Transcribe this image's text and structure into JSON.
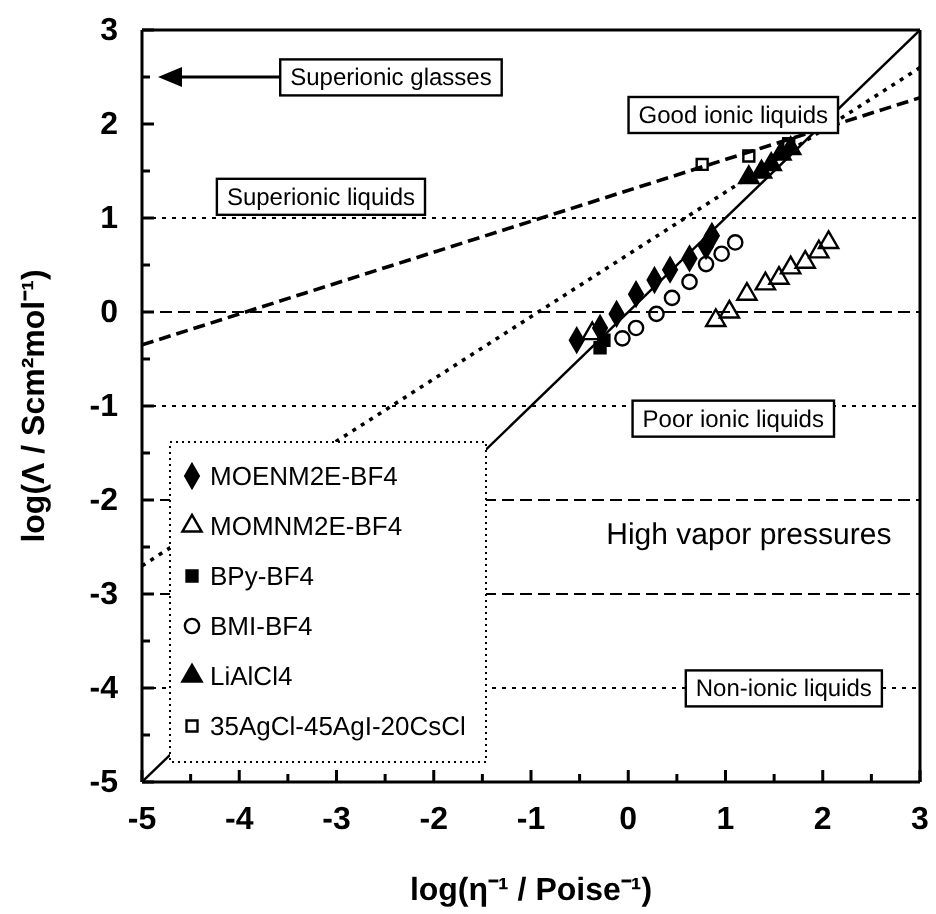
{
  "chart_data": {
    "type": "scatter",
    "xlabel": "log(η⁻¹ / Poise⁻¹)",
    "ylabel": "log(Λ / Scm²mol⁻¹)",
    "xlim": [
      -5,
      3
    ],
    "ylim": [
      -5,
      3
    ],
    "xticks": [
      -5,
      {
        "value": -4.5,
        "label": null
      },
      -4,
      {
        "value": -3.5,
        "label": null
      },
      -3,
      {
        "value": -2.5,
        "label": null
      },
      -2,
      {
        "value": -1.5,
        "label": null
      },
      -1,
      {
        "value": -0.5,
        "label": null
      },
      0,
      {
        "value": 0.5,
        "label": null
      },
      1,
      {
        "value": 1.5,
        "label": null
      },
      2,
      {
        "value": 2.5,
        "label": null
      },
      3
    ],
    "yticks": [
      -5,
      {
        "value": -4.5,
        "label": null
      },
      -4,
      {
        "value": -3.5,
        "label": null
      },
      -3,
      {
        "value": -2.5,
        "label": null
      },
      -2,
      {
        "value": -1.5,
        "label": null
      },
      -1,
      {
        "value": -0.5,
        "label": null
      },
      0,
      {
        "value": 0.5,
        "label": null
      },
      1,
      {
        "value": 1.5,
        "label": null
      },
      2,
      {
        "value": 2.5,
        "label": null
      },
      3
    ],
    "legend": "bottom left",
    "grid": false,
    "series": [
      {
        "name": "MOENM2E-BF4",
        "marker": "diamond",
        "color": "#000000",
        "x": [
          -0.53,
          -0.29,
          -0.12,
          0.08,
          0.27,
          0.43,
          0.63,
          0.8,
          0.86
        ],
        "values": [
          -0.3,
          -0.17,
          -0.02,
          0.19,
          0.34,
          0.45,
          0.57,
          0.7,
          0.81
        ]
      },
      {
        "name": "MOMNM2E-BF4",
        "marker": "triangle",
        "color": "#000000",
        "x": [
          -0.37,
          0.9,
          1.04,
          1.22,
          1.41,
          1.55,
          1.67,
          1.82,
          1.96,
          2.06
        ],
        "values": [
          -0.23,
          -0.09,
          0.0,
          0.19,
          0.3,
          0.36,
          0.47,
          0.53,
          0.64,
          0.74
        ]
      },
      {
        "name": "BPy-BF4",
        "marker": "square",
        "color": "#000000",
        "x": [
          -0.29,
          -0.25
        ],
        "values": [
          -0.38,
          -0.3
        ]
      },
      {
        "name": "BMI-BF4",
        "marker": "circle",
        "color": "#000000",
        "x": [
          -0.06,
          0.08,
          0.29,
          0.45,
          0.63,
          0.8,
          0.96,
          1.1
        ],
        "values": [
          -0.28,
          -0.17,
          -0.02,
          0.15,
          0.32,
          0.51,
          0.62,
          0.74
        ]
      },
      {
        "name": "LiAlCl4",
        "marker": "triangle",
        "color": "#000000",
        "x": [
          1.24,
          1.37,
          1.47,
          1.57,
          1.67
        ],
        "values": [
          1.43,
          1.49,
          1.57,
          1.68,
          1.74
        ]
      },
      {
        "name": "35AgCl-45AgI-20CsCl",
        "marker": "square",
        "color": "#000000",
        "x": [
          0.76,
          1.24,
          1.65
        ],
        "values": [
          1.57,
          1.66,
          1.79
        ]
      },
      {
        "type": "line",
        "line_style": "solid",
        "color": "#000000",
        "x": [
          -5,
          3
        ],
        "values": [
          -5,
          3
        ]
      },
      {
        "type": "line",
        "line_style": "dashed",
        "color": "#000000",
        "x": [
          -5,
          3
        ],
        "values": [
          -0.35,
          2.28
        ]
      },
      {
        "type": "line",
        "line_style": "dotted",
        "color": "#000000",
        "x": [
          -5,
          3
        ],
        "values": [
          -2.7,
          2.6
        ]
      }
    ],
    "ref_lines": [
      {
        "axis": "y",
        "value": 1,
        "line_style": "dotted"
      },
      {
        "axis": "y",
        "value": 0,
        "line_style": "dashed"
      },
      {
        "axis": "y",
        "value": -1,
        "line_style": "dotted"
      },
      {
        "axis": "y",
        "value": -2,
        "line_style": "dashed"
      },
      {
        "axis": "y",
        "value": -3,
        "line_style": "dashed"
      },
      {
        "axis": "y",
        "value": -4,
        "line_style": "dotted"
      }
    ],
    "annotations": [
      "Superionic glasses",
      "Good ionic liquids",
      "Superionic liquids",
      "Poor ionic liquids",
      "High vapor pressures",
      "Non-ionic liquids"
    ]
  }
}
